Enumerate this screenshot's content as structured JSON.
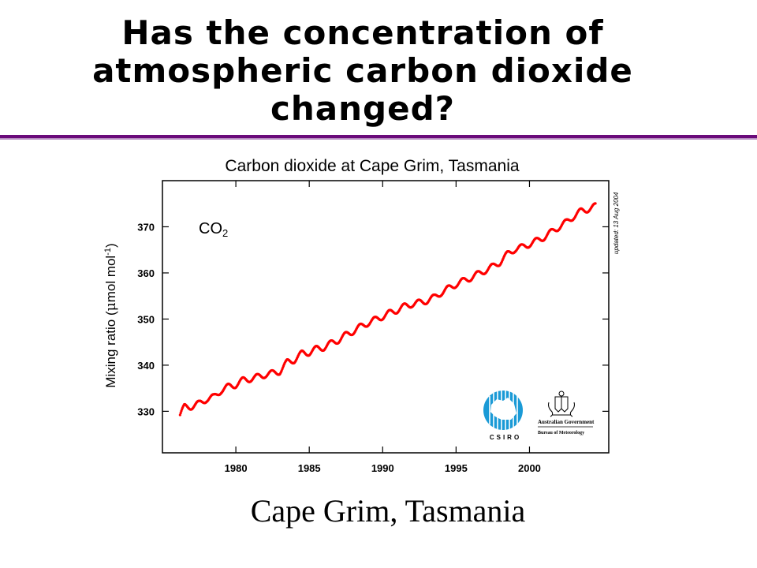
{
  "slide": {
    "title": "Has the concentration of atmospheric carbon dioxide changed?",
    "caption": "Cape Grim, Tasmania"
  },
  "chart_data": {
    "type": "line",
    "title": "Carbon dioxide at Cape Grim, Tasmania",
    "xlabel": "",
    "ylabel_prefix": "Mixing ratio (",
    "ylabel_mu": "μ",
    "ylabel_unit": "mol mol",
    "ylabel_sup": "-1",
    "ylabel_suffix": ")",
    "series_label": "CO",
    "series_label_sub": "2",
    "updated_note": "updated: 13 Aug 2004",
    "xlim": [
      1975.0,
      2005.4
    ],
    "ylim": [
      321,
      380
    ],
    "x_ticks": [
      1980,
      1985,
      1990,
      1995,
      2000
    ],
    "y_ticks": [
      330,
      340,
      350,
      360,
      370
    ],
    "line_color": "#ff0000",
    "trend_points": [
      [
        1976.2,
        329.2
      ],
      [
        1976.5,
        330.9
      ],
      [
        1977.0,
        331.1
      ],
      [
        1977.5,
        331.6
      ],
      [
        1978.0,
        332.7
      ],
      [
        1978.5,
        333.0
      ],
      [
        1979.0,
        334.6
      ],
      [
        1979.5,
        335.3
      ],
      [
        1980.0,
        335.8
      ],
      [
        1980.5,
        336.7
      ],
      [
        1981.0,
        337.1
      ],
      [
        1981.5,
        337.4
      ],
      [
        1982.0,
        338.0
      ],
      [
        1982.5,
        338.2
      ],
      [
        1983.0,
        338.7
      ],
      [
        1983.5,
        340.6
      ],
      [
        1984.0,
        341.2
      ],
      [
        1984.5,
        342.5
      ],
      [
        1985.0,
        342.8
      ],
      [
        1985.5,
        343.5
      ],
      [
        1986.0,
        343.9
      ],
      [
        1986.5,
        344.7
      ],
      [
        1987.0,
        345.5
      ],
      [
        1987.5,
        346.5
      ],
      [
        1988.0,
        347.4
      ],
      [
        1988.5,
        348.3
      ],
      [
        1989.0,
        349.2
      ],
      [
        1989.5,
        349.8
      ],
      [
        1990.0,
        350.6
      ],
      [
        1990.5,
        351.3
      ],
      [
        1991.0,
        352.0
      ],
      [
        1991.5,
        352.7
      ],
      [
        1992.0,
        353.3
      ],
      [
        1992.5,
        353.5
      ],
      [
        1993.0,
        354.0
      ],
      [
        1993.5,
        354.6
      ],
      [
        1994.0,
        355.8
      ],
      [
        1994.5,
        356.6
      ],
      [
        1995.0,
        357.6
      ],
      [
        1995.5,
        358.2
      ],
      [
        1996.0,
        359.0
      ],
      [
        1996.5,
        359.7
      ],
      [
        1997.0,
        360.6
      ],
      [
        1997.5,
        361.3
      ],
      [
        1998.0,
        362.4
      ],
      [
        1998.5,
        364.0
      ],
      [
        1999.0,
        365.2
      ],
      [
        1999.5,
        365.5
      ],
      [
        2000.0,
        366.3
      ],
      [
        2000.5,
        366.9
      ],
      [
        2001.0,
        367.8
      ],
      [
        2001.5,
        368.8
      ],
      [
        2002.0,
        370.0
      ],
      [
        2002.5,
        370.9
      ],
      [
        2003.0,
        372.3
      ],
      [
        2003.5,
        373.3
      ],
      [
        2004.0,
        373.9
      ],
      [
        2004.5,
        374.4
      ]
    ],
    "seasonal_amplitude": 0.7
  },
  "logos": {
    "csiro_text": "CSIRO",
    "gov_line1": "Australian Government",
    "gov_line2": "Bureau of Meteorology"
  }
}
